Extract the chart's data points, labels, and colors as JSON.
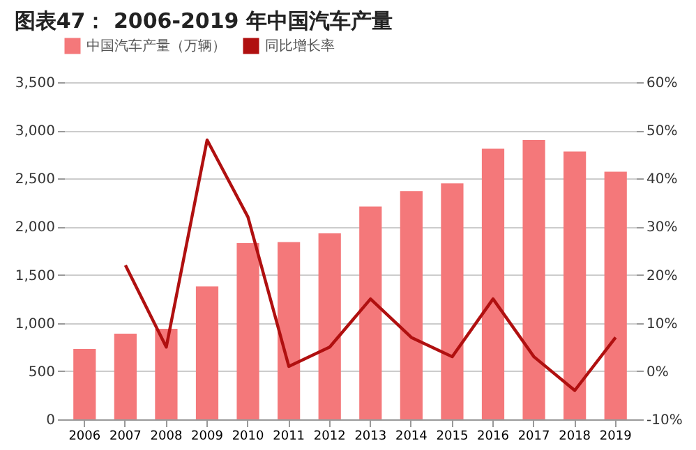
{
  "chart_data": {
    "type": "bar",
    "title": "图表47：  2006-2019 年中国汽车产量",
    "categories": [
      "2006",
      "2007",
      "2008",
      "2009",
      "2010",
      "2011",
      "2012",
      "2013",
      "2014",
      "2015",
      "2016",
      "2017",
      "2018",
      "2019"
    ],
    "series": [
      {
        "name": "中国汽车产量（万辆）",
        "color": "#f4787a",
        "values": [
          730,
          890,
          940,
          1380,
          1830,
          1840,
          1930,
          2210,
          2370,
          2450,
          2810,
          2900,
          2780,
          2570
        ]
      },
      {
        "name": "同比增长率",
        "type": "line",
        "axis": "y2",
        "color": "#b01010",
        "values": [
          null,
          22,
          5,
          48,
          32,
          1,
          5,
          15,
          7,
          3,
          15,
          3,
          -4,
          7
        ]
      }
    ],
    "ylim": [
      0,
      3500
    ],
    "yticks": [
      0,
      500,
      {
        "value": 1000,
        "label": "1,000"
      },
      {
        "value": 1500,
        "label": "1,500"
      },
      {
        "value": 2000,
        "label": "2,000"
      },
      {
        "value": 2500,
        "label": "2,500"
      },
      {
        "value": 3000,
        "label": "3,000"
      },
      {
        "value": 3500,
        "label": "3,500"
      }
    ],
    "y2lim": [
      -10,
      60
    ],
    "y2ticks": [
      {
        "value": -10,
        "label": "-10%"
      },
      {
        "value": 0,
        "label": "0%"
      },
      {
        "value": 10,
        "label": "10%"
      },
      {
        "value": 20,
        "label": "20%"
      },
      {
        "value": 30,
        "label": "30%"
      },
      {
        "value": 40,
        "label": "40%"
      },
      {
        "value": 50,
        "label": "50%"
      },
      {
        "value": 60,
        "label": "60%"
      }
    ],
    "grid": "y",
    "legend": "top",
    "marker": "none",
    "line_style": "solid"
  }
}
